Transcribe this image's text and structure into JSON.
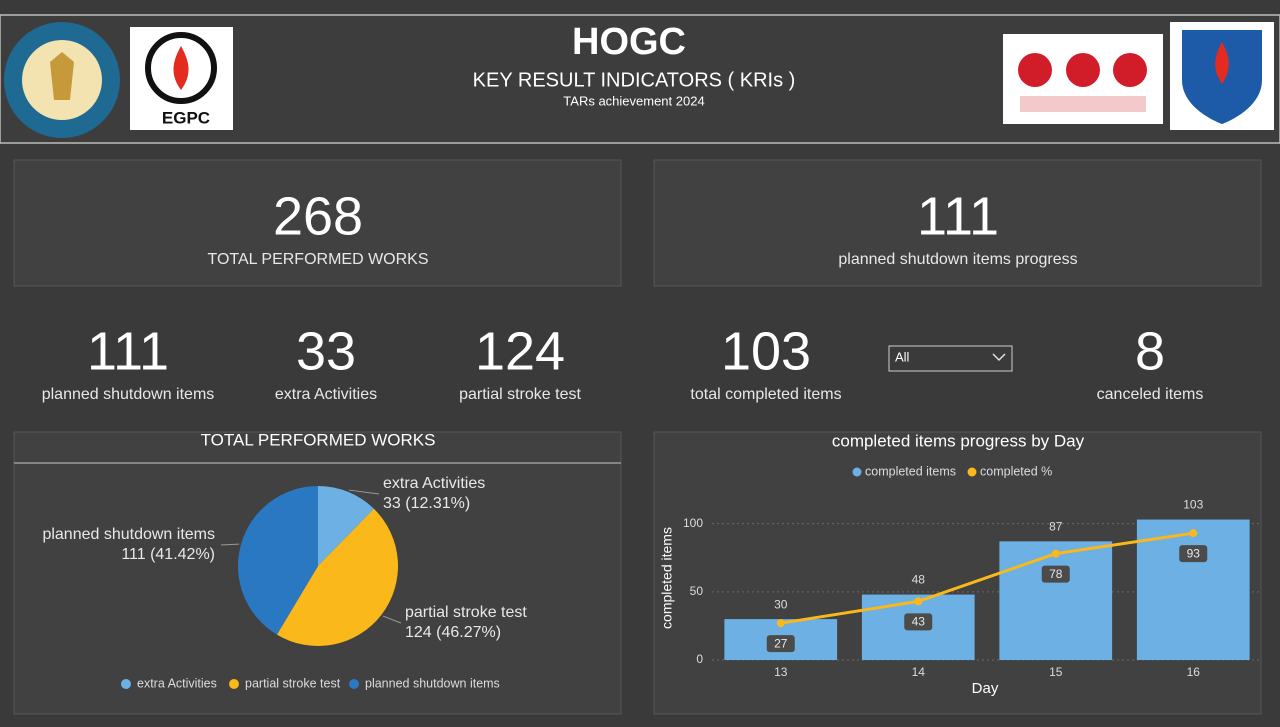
{
  "header": {
    "title": "HOGC",
    "subtitle": "KEY RESULT INDICATORS ( KRIs )",
    "caption": "TARs  achievement  2024",
    "logo_left": "EGPC"
  },
  "kpis": [
    {
      "value": 268,
      "label": "TOTAL PERFORMED WORKS"
    },
    {
      "value": 111,
      "label": "planned shutdown items progress"
    },
    {
      "value": 111,
      "label": "planned shutdown items"
    },
    {
      "value": 33,
      "label": "extra Activities"
    },
    {
      "value": 124,
      "label": "partial stroke test"
    },
    {
      "value": 103,
      "label": "total completed items"
    },
    {
      "value": 8,
      "label": "canceled items"
    }
  ],
  "filter": {
    "selected": "All"
  },
  "chart_data": [
    {
      "type": "pie",
      "title": "TOTAL PERFORMED WORKS",
      "categories": [
        "extra Activities",
        "partial stroke test",
        "planned shutdown items"
      ],
      "values": [
        33,
        124,
        111
      ],
      "value_labels": [
        "33 (12.31%)",
        "124 (46.27%)",
        "111 (41.42%)"
      ],
      "colors": [
        "#6cb0e4",
        "#fbb81a",
        "#2a78c2"
      ],
      "legend": "bottom"
    },
    {
      "type": "bar",
      "title": "completed items progress by Day",
      "x_label": "Day",
      "y_label": "completed items",
      "categories": [
        "13",
        "14",
        "15",
        "16"
      ],
      "series": [
        {
          "name": "completed items",
          "type": "bar",
          "color": "#6cb0e4",
          "values": [
            30,
            48,
            87,
            103
          ]
        },
        {
          "name": "completed %",
          "type": "line",
          "color": "#fbb81a",
          "values": [
            27,
            43,
            78,
            93
          ]
        }
      ],
      "ylim": [
        0,
        110
      ],
      "yticks": [
        0,
        50,
        100
      ],
      "grid": true,
      "legend": "top"
    }
  ]
}
